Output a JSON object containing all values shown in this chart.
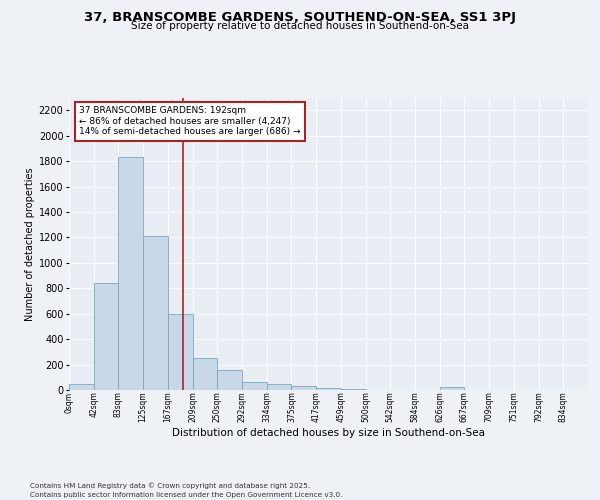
{
  "title": "37, BRANSCOMBE GARDENS, SOUTHEND-ON-SEA, SS1 3PJ",
  "subtitle": "Size of property relative to detached houses in Southend-on-Sea",
  "xlabel": "Distribution of detached houses by size in Southend-on-Sea",
  "ylabel": "Number of detached properties",
  "bar_color": "#c8d8e8",
  "bar_edge_color": "#7aaabb",
  "background_color": "#e8eef4",
  "grid_color": "#ffffff",
  "vline_color": "#aa2222",
  "annotation_text": "37 BRANSCOMBE GARDENS: 192sqm\n← 86% of detached houses are smaller (4,247)\n14% of semi-detached houses are larger (686) →",
  "annotation_box_edge": "#aa2222",
  "bins": [
    "0sqm",
    "42sqm",
    "83sqm",
    "125sqm",
    "167sqm",
    "209sqm",
    "250sqm",
    "292sqm",
    "334sqm",
    "375sqm",
    "417sqm",
    "459sqm",
    "500sqm",
    "542sqm",
    "584sqm",
    "626sqm",
    "667sqm",
    "709sqm",
    "751sqm",
    "792sqm",
    "834sqm"
  ],
  "values": [
    50,
    840,
    1830,
    1210,
    600,
    250,
    155,
    65,
    50,
    30,
    15,
    5,
    0,
    0,
    0,
    20,
    0,
    0,
    0,
    0,
    0
  ],
  "ylim": [
    0,
    2300
  ],
  "yticks": [
    0,
    200,
    400,
    600,
    800,
    1000,
    1200,
    1400,
    1600,
    1800,
    2000,
    2200
  ],
  "vline_pos": 4.595,
  "footer": "Contains HM Land Registry data © Crown copyright and database right 2025.\nContains public sector information licensed under the Open Government Licence v3.0.",
  "fig_bg": "#eef2f7"
}
